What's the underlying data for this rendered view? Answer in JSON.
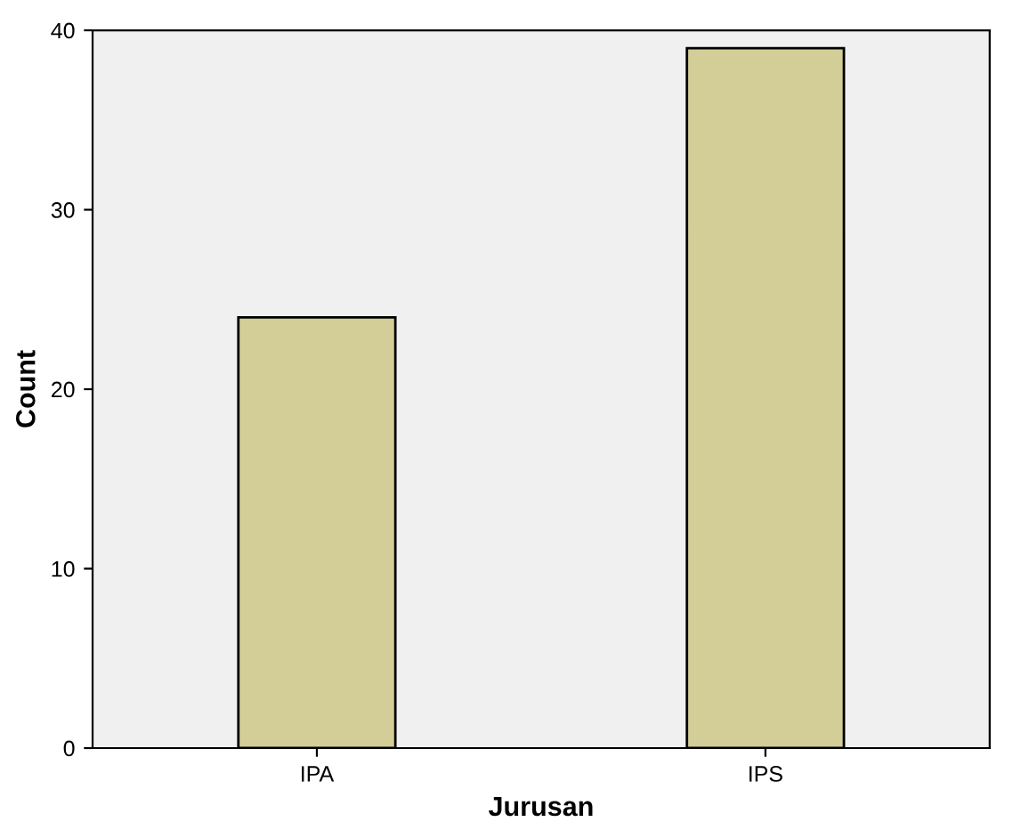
{
  "chart_data": {
    "type": "bar",
    "xlabel": "Jurusan",
    "ylabel": "Count",
    "categories": [
      "IPA",
      "IPS"
    ],
    "values": [
      24,
      39
    ],
    "color": "#d3ce97",
    "ylim": [
      0,
      40
    ],
    "yticks": [
      0,
      10,
      20,
      30,
      40
    ],
    "grid": false
  }
}
